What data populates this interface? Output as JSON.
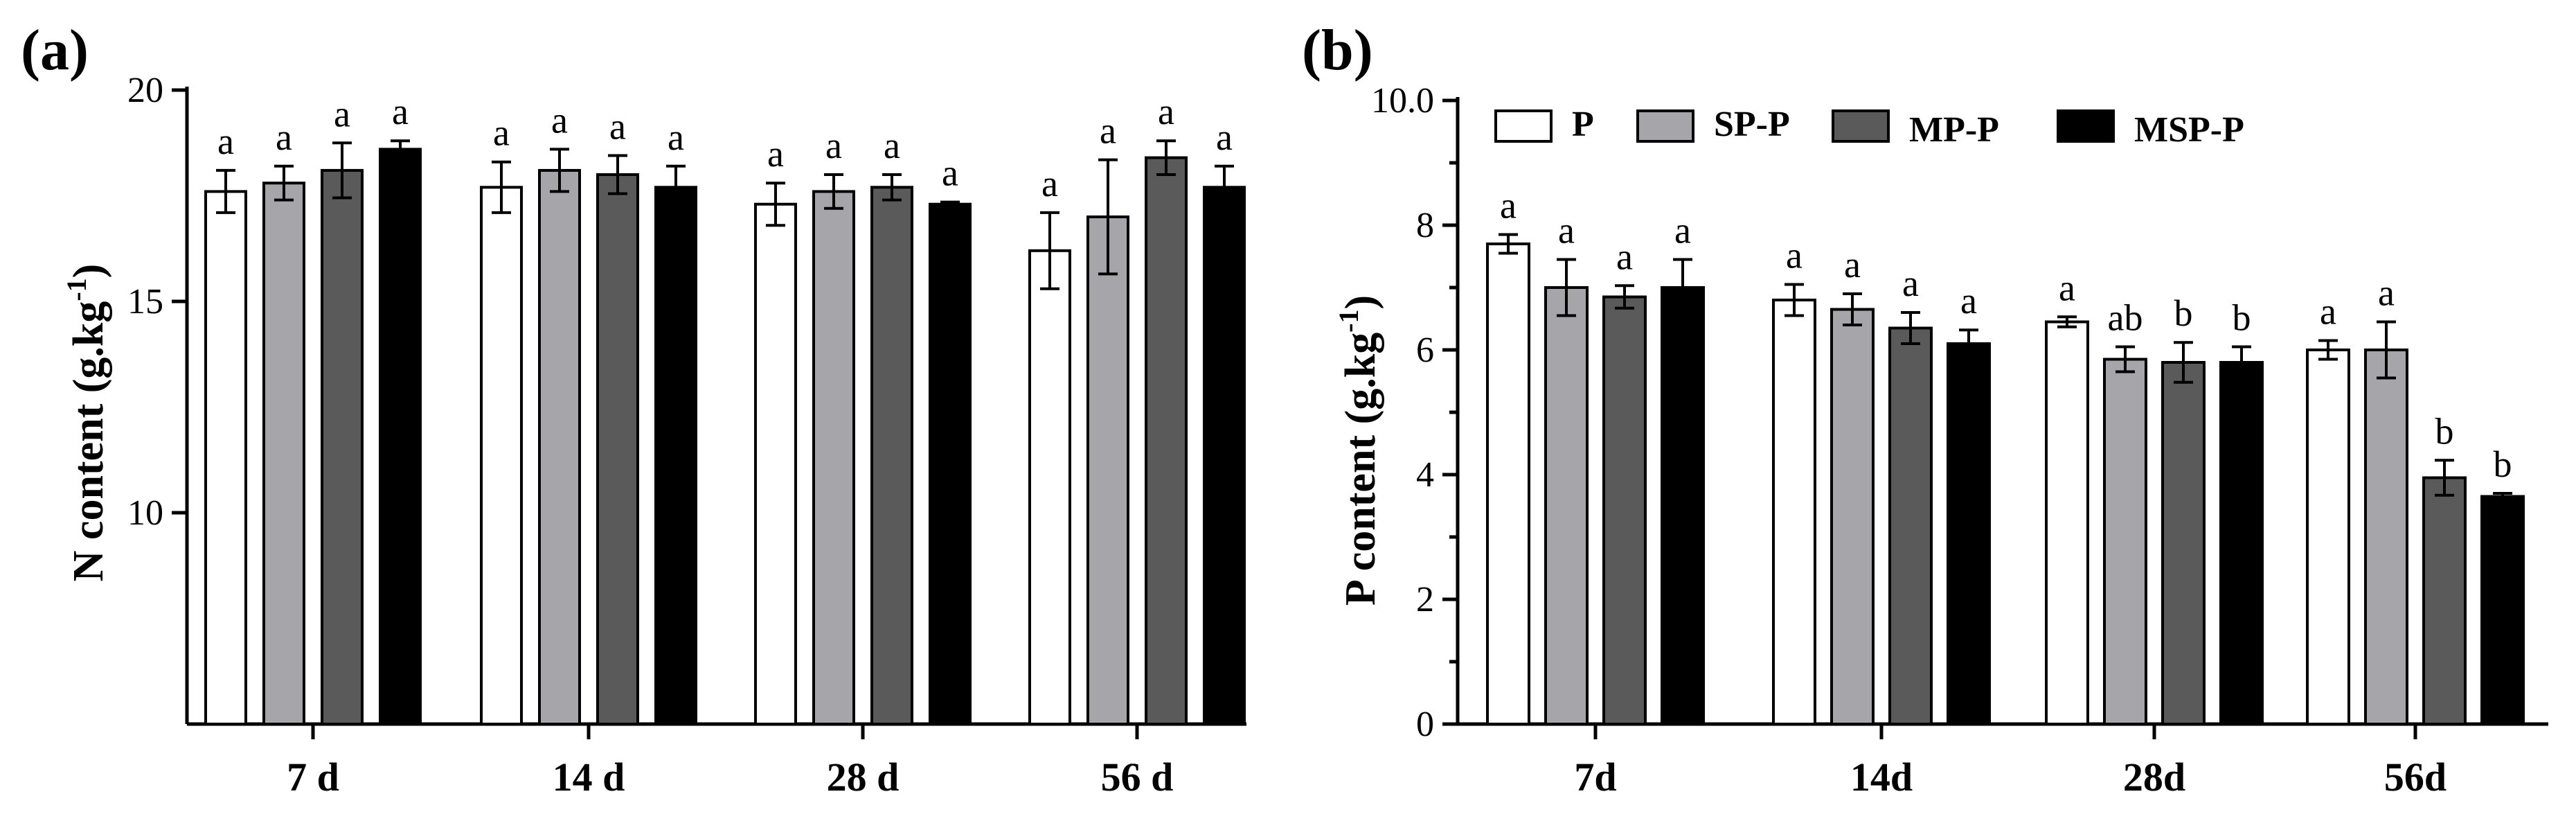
{
  "series_colors": {
    "P": "#ffffff",
    "SP-P": "#a6a6aa",
    "MP-P": "#5a5a5a",
    "MSP-P": "#000000"
  },
  "chart_data": [
    {
      "panel": "(a)",
      "type": "bar",
      "title": "",
      "xlabel": "",
      "ylabel": "N content (g.kg",
      "ylabel_sup": "-1",
      "ylabel_close": ")",
      "ylim": [
        5,
        20
      ],
      "yticks": [
        "10",
        "15",
        "20"
      ],
      "categories": [
        "7 d",
        "14 d",
        "28 d",
        "56 d"
      ],
      "series": [
        {
          "name": "P",
          "values": [
            17.6,
            17.7,
            17.3,
            16.2
          ],
          "errors": [
            0.5,
            0.6,
            0.5,
            0.9
          ],
          "letters": [
            "a",
            "a",
            "a",
            "a"
          ]
        },
        {
          "name": "SP-P",
          "values": [
            17.8,
            18.1,
            17.6,
            17.0
          ],
          "errors": [
            0.4,
            0.5,
            0.4,
            1.35
          ],
          "letters": [
            "a",
            "a",
            "a",
            "a"
          ]
        },
        {
          "name": "MP-P",
          "values": [
            18.1,
            18.0,
            17.7,
            18.4
          ],
          "errors": [
            0.65,
            0.45,
            0.3,
            0.4
          ],
          "letters": [
            "a",
            "a",
            "a",
            "a"
          ]
        },
        {
          "name": "MSP-P",
          "values": [
            18.6,
            17.7,
            17.3,
            17.7
          ],
          "errors": [
            0.2,
            0.5,
            0.05,
            0.5
          ],
          "letters": [
            "a",
            "a",
            "a",
            "a"
          ]
        }
      ],
      "legend": null
    },
    {
      "panel": "(b)",
      "type": "bar",
      "title": "",
      "xlabel": "",
      "ylabel": "P content (g.kg",
      "ylabel_sup": "-1",
      "ylabel_close": ")",
      "ylim": [
        0,
        10
      ],
      "yticks": [
        "0",
        "2",
        "4",
        "6",
        "8",
        "10.0"
      ],
      "categories": [
        "7d",
        "14d",
        "28d",
        "56d"
      ],
      "series": [
        {
          "name": "P",
          "values": [
            7.7,
            6.8,
            6.45,
            6.0
          ],
          "errors": [
            0.15,
            0.25,
            0.08,
            0.15
          ],
          "letters": [
            "a",
            "a",
            "a",
            "a"
          ]
        },
        {
          "name": "SP-P",
          "values": [
            7.0,
            6.65,
            5.85,
            6.0
          ],
          "errors": [
            0.45,
            0.25,
            0.2,
            0.45
          ],
          "letters": [
            "a",
            "a",
            "ab",
            "a"
          ]
        },
        {
          "name": "MP-P",
          "values": [
            6.85,
            6.35,
            5.8,
            3.95
          ],
          "errors": [
            0.18,
            0.25,
            0.32,
            0.28
          ],
          "letters": [
            "a",
            "a",
            "b",
            "b"
          ]
        },
        {
          "name": "MSP-P",
          "values": [
            7.0,
            6.1,
            5.8,
            3.65
          ],
          "errors": [
            0.45,
            0.22,
            0.25,
            0.05
          ],
          "letters": [
            "a",
            "a",
            "b",
            "b"
          ]
        }
      ],
      "legend": {
        "position": "top-left",
        "entries": [
          "P",
          "SP-P",
          "MP-P",
          "MSP-P"
        ]
      }
    }
  ]
}
